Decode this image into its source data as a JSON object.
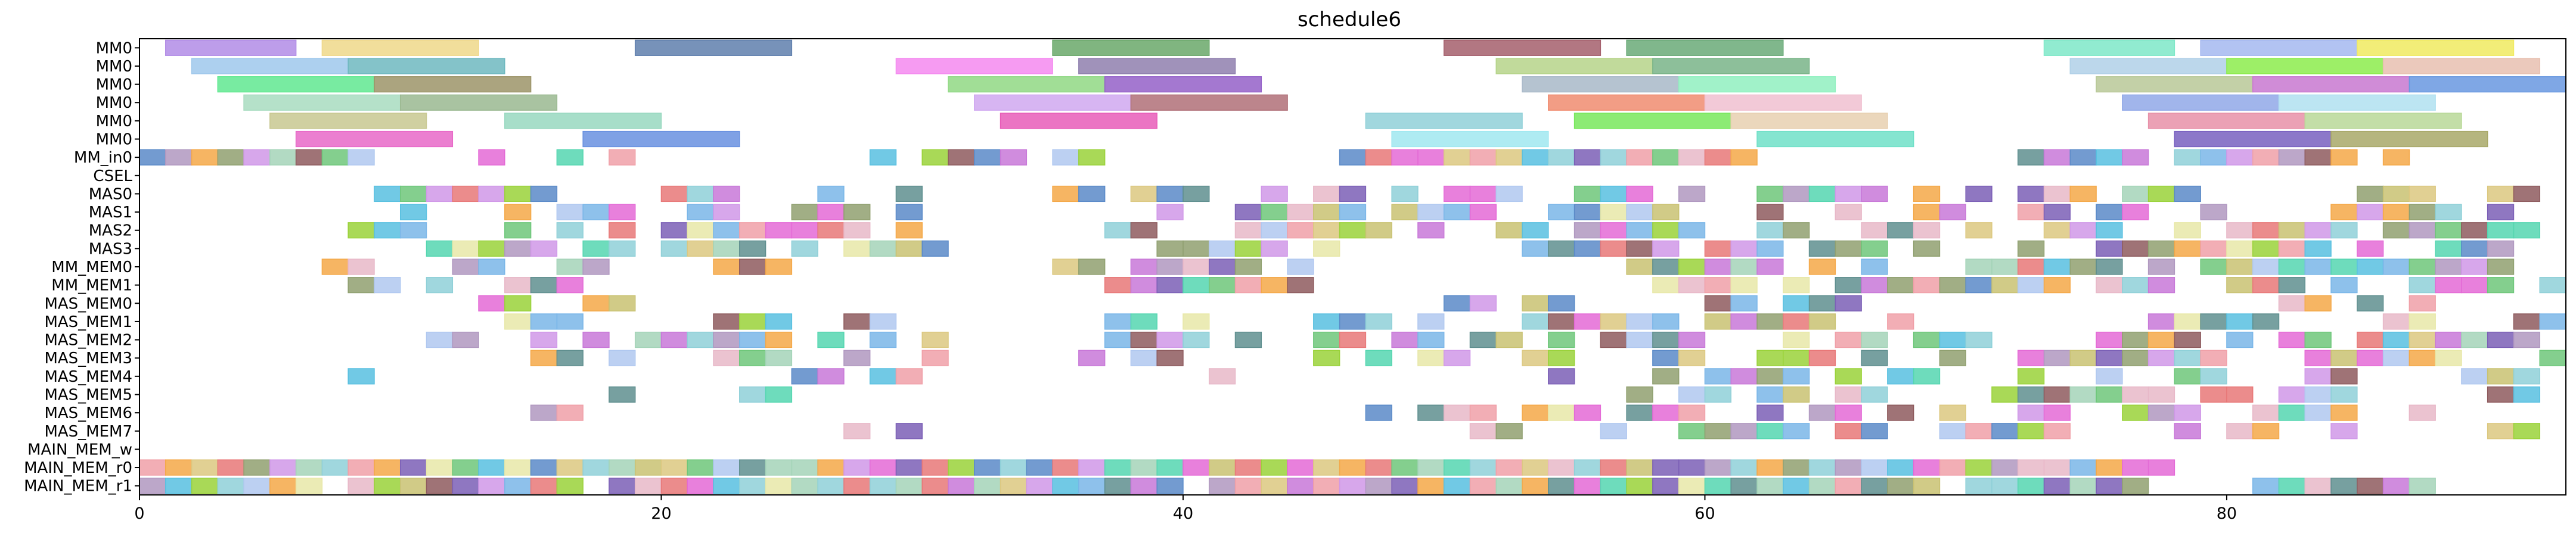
{
  "chart_data": {
    "type": "gantt",
    "title": "schedule6",
    "xlim": [
      0,
      93
    ],
    "xticks": [
      0,
      20,
      40,
      60,
      80
    ],
    "xtick_labels": [
      "0",
      "20",
      "40",
      "60",
      "80"
    ],
    "rows": [
      "MM0",
      "MM0",
      "MM0",
      "MM0",
      "MM0",
      "MM0",
      "MM_in0",
      "CSEL",
      "MAS0",
      "MAS1",
      "MAS2",
      "MAS3",
      "MM_MEM0",
      "MM_MEM1",
      "MAS_MEM0",
      "MAS_MEM1",
      "MAS_MEM2",
      "MAS_MEM3",
      "MAS_MEM4",
      "MAS_MEM5",
      "MAS_MEM6",
      "MAS_MEM7",
      "MAIN_MEM_w",
      "MAIN_MEM_r0",
      "MAIN_MEM_r1"
    ],
    "palette": [
      "#8fd0d8",
      "#c9c272",
      "#e46ad6",
      "#7b5fb6",
      "#8e5b5e",
      "#6ec77a",
      "#f0a0a8",
      "#5a8ac8",
      "#a4d4b8",
      "#dcc880",
      "#9ad23a",
      "#e8b8c8",
      "#c878d8",
      "#5f8f8f",
      "#e8e8a8",
      "#7ab6e8",
      "#f4a848",
      "#55d6b0",
      "#b0c8f0",
      "#d098e8",
      "#e87878",
      "#90a070",
      "#58c0e0",
      "#b098c0"
    ],
    "tasks": [
      [
        0,
        1,
        6,
        "#b28ce6"
      ],
      [
        0,
        7,
        13,
        "#efd88a"
      ],
      [
        0,
        19,
        25,
        "#5f7fad"
      ],
      [
        0,
        35,
        41,
        "#6aa86a"
      ],
      [
        0,
        50,
        56,
        "#a45f6c"
      ],
      [
        0,
        57,
        63,
        "#6aaa78"
      ],
      [
        0,
        73,
        78,
        "#7ee8c8"
      ],
      [
        0,
        79,
        85,
        "#a4b8f0"
      ],
      [
        0,
        85,
        91,
        "#f0ea60"
      ],
      [
        1,
        2,
        8,
        "#9fc8ec"
      ],
      [
        1,
        8,
        14,
        "#6fb8c0"
      ],
      [
        1,
        29,
        35,
        "#f48af0"
      ],
      [
        1,
        36,
        42,
        "#8f7fae"
      ],
      [
        1,
        52,
        58,
        "#b6d48a"
      ],
      [
        1,
        58,
        64,
        "#79b488"
      ],
      [
        1,
        74,
        80,
        "#b0d0e8"
      ],
      [
        1,
        80,
        86,
        "#8cec4c"
      ],
      [
        1,
        86,
        92,
        "#e8c0b0"
      ],
      [
        2,
        3,
        9,
        "#60e890"
      ],
      [
        2,
        9,
        15,
        "#9c9468"
      ],
      [
        2,
        31,
        37,
        "#90d884"
      ],
      [
        2,
        37,
        43,
        "#9460c8"
      ],
      [
        2,
        53,
        59,
        "#a8b8c8"
      ],
      [
        2,
        59,
        65,
        "#90f0c0"
      ],
      [
        2,
        75,
        81,
        "#b8c898"
      ],
      [
        2,
        81,
        87,
        "#c878d0"
      ],
      [
        2,
        87,
        93,
        "#6898e0"
      ],
      [
        3,
        4,
        10,
        "#a8dcc0"
      ],
      [
        3,
        10,
        16,
        "#9ab890"
      ],
      [
        3,
        32,
        38,
        "#d0a8f0"
      ],
      [
        3,
        38,
        44,
        "#b07078"
      ],
      [
        3,
        54,
        60,
        "#f08c70"
      ],
      [
        3,
        60,
        66,
        "#f0c0d0"
      ],
      [
        3,
        76,
        82,
        "#90a8e8"
      ],
      [
        3,
        82,
        88,
        "#b0e0f0"
      ],
      [
        4,
        5,
        11,
        "#c8c890"
      ],
      [
        4,
        14,
        20,
        "#98d8c0"
      ],
      [
        4,
        33,
        39,
        "#e85cb8"
      ],
      [
        4,
        47,
        53,
        "#90d0d8"
      ],
      [
        4,
        55,
        61,
        "#78e85c"
      ],
      [
        4,
        61,
        67,
        "#e8d0b0"
      ],
      [
        4,
        77,
        83,
        "#e890a8"
      ],
      [
        4,
        83,
        89,
        "#b8d898"
      ],
      [
        5,
        6,
        12,
        "#e868c8"
      ],
      [
        5,
        17,
        23,
        "#6890e0"
      ],
      [
        5,
        48,
        54,
        "#a0e8f0"
      ],
      [
        5,
        62,
        68,
        "#70e0c8"
      ],
      [
        5,
        78,
        84,
        "#7860c0"
      ],
      [
        5,
        84,
        90,
        "#a8a868"
      ]
    ]
  }
}
